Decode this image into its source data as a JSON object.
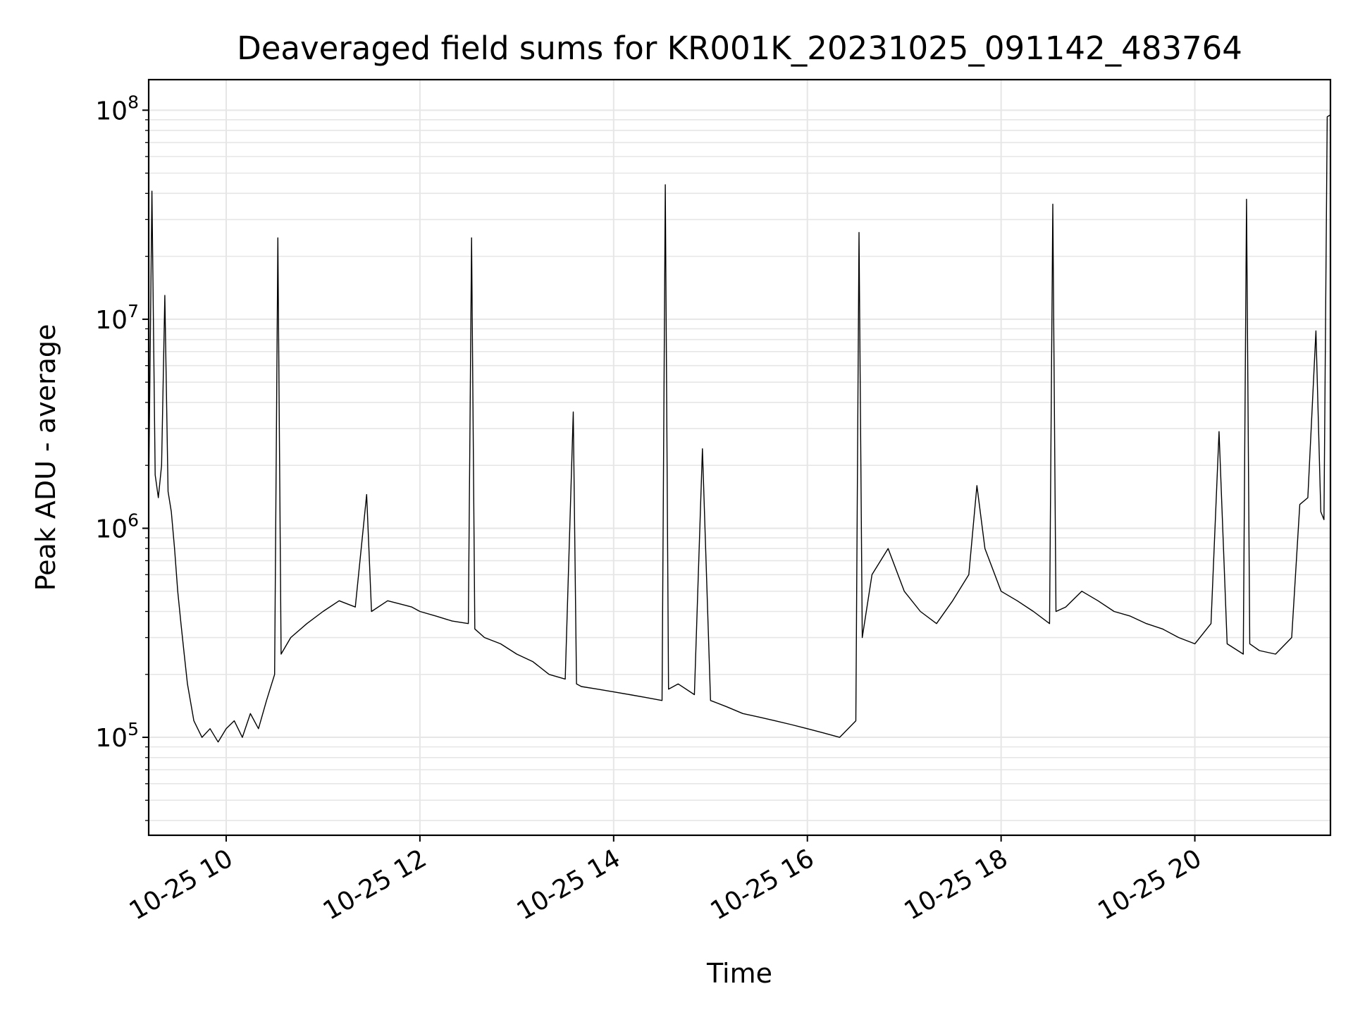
{
  "chart_data": {
    "type": "line",
    "title": "Deaveraged field sums for KR001K_20231025_091142_483764",
    "xlabel": "Time",
    "ylabel": "Peak ADU - average",
    "yscale": "log",
    "xlim": [
      "2023-10-25 09:12",
      "2023-10-25 21:24"
    ],
    "ylim": [
      34000,
      140000000
    ],
    "grid": true,
    "line_color": "#000000",
    "grid_color": "#e6e6e6",
    "x_ticks": [
      {
        "label": "10-25 10",
        "value": "2023-10-25 10:00"
      },
      {
        "label": "10-25 12",
        "value": "2023-10-25 12:00"
      },
      {
        "label": "10-25 14",
        "value": "2023-10-25 14:00"
      },
      {
        "label": "10-25 16",
        "value": "2023-10-25 16:00"
      },
      {
        "label": "10-25 18",
        "value": "2023-10-25 18:00"
      },
      {
        "label": "10-25 20",
        "value": "2023-10-25 20:00"
      }
    ],
    "y_ticks": [
      {
        "base": "10",
        "exp": "5",
        "value": 100000
      },
      {
        "base": "10",
        "exp": "6",
        "value": 1000000
      },
      {
        "base": "10",
        "exp": "7",
        "value": 10000000
      },
      {
        "base": "10",
        "exp": "8",
        "value": 100000000
      }
    ],
    "series": [
      {
        "x": [
          "2023-10-25 09:12",
          "2023-10-25 09:14",
          "2023-10-25 09:16",
          "2023-10-25 09:18",
          "2023-10-25 09:20",
          "2023-10-25 09:22",
          "2023-10-25 09:24",
          "2023-10-25 09:26",
          "2023-10-25 09:28",
          "2023-10-25 09:30",
          "2023-10-25 09:32",
          "2023-10-25 09:34",
          "2023-10-25 09:36",
          "2023-10-25 09:40",
          "2023-10-25 09:45",
          "2023-10-25 09:50",
          "2023-10-25 09:55",
          "2023-10-25 10:00",
          "2023-10-25 10:05",
          "2023-10-25 10:10",
          "2023-10-25 10:15",
          "2023-10-25 10:20",
          "2023-10-25 10:25",
          "2023-10-25 10:30",
          "2023-10-25 10:32",
          "2023-10-25 10:34",
          "2023-10-25 10:40",
          "2023-10-25 10:50",
          "2023-10-25 11:00",
          "2023-10-25 11:10",
          "2023-10-25 11:20",
          "2023-10-25 11:27",
          "2023-10-25 11:30",
          "2023-10-25 11:40",
          "2023-10-25 11:50",
          "2023-10-25 11:55",
          "2023-10-25 12:00",
          "2023-10-25 12:10",
          "2023-10-25 12:20",
          "2023-10-25 12:30",
          "2023-10-25 12:32",
          "2023-10-25 12:34",
          "2023-10-25 12:40",
          "2023-10-25 12:50",
          "2023-10-25 13:00",
          "2023-10-25 13:10",
          "2023-10-25 13:20",
          "2023-10-25 13:30",
          "2023-10-25 13:35",
          "2023-10-25 13:37",
          "2023-10-25 13:40",
          "2023-10-25 13:50",
          "2023-10-25 14:00",
          "2023-10-25 14:10",
          "2023-10-25 14:20",
          "2023-10-25 14:30",
          "2023-10-25 14:32",
          "2023-10-25 14:34",
          "2023-10-25 14:40",
          "2023-10-25 14:50",
          "2023-10-25 14:55",
          "2023-10-25 15:00",
          "2023-10-25 15:10",
          "2023-10-25 15:20",
          "2023-10-25 15:30",
          "2023-10-25 15:40",
          "2023-10-25 15:50",
          "2023-10-25 16:00",
          "2023-10-25 16:10",
          "2023-10-25 16:20",
          "2023-10-25 16:30",
          "2023-10-25 16:32",
          "2023-10-25 16:34",
          "2023-10-25 16:40",
          "2023-10-25 16:50",
          "2023-10-25 17:00",
          "2023-10-25 17:10",
          "2023-10-25 17:20",
          "2023-10-25 17:30",
          "2023-10-25 17:40",
          "2023-10-25 17:45",
          "2023-10-25 17:50",
          "2023-10-25 18:00",
          "2023-10-25 18:10",
          "2023-10-25 18:20",
          "2023-10-25 18:30",
          "2023-10-25 18:32",
          "2023-10-25 18:34",
          "2023-10-25 18:40",
          "2023-10-25 18:50",
          "2023-10-25 19:00",
          "2023-10-25 19:10",
          "2023-10-25 19:20",
          "2023-10-25 19:30",
          "2023-10-25 19:40",
          "2023-10-25 19:50",
          "2023-10-25 20:00",
          "2023-10-25 20:10",
          "2023-10-25 20:15",
          "2023-10-25 20:20",
          "2023-10-25 20:30",
          "2023-10-25 20:32",
          "2023-10-25 20:34",
          "2023-10-25 20:40",
          "2023-10-25 20:50",
          "2023-10-25 21:00",
          "2023-10-25 21:05",
          "2023-10-25 21:10",
          "2023-10-25 21:15",
          "2023-10-25 21:18",
          "2023-10-25 21:20",
          "2023-10-25 21:22",
          "2023-10-25 21:24"
        ],
        "y": [
          1500000,
          41000000,
          1800000,
          1400000,
          2000000,
          13000000,
          1500000,
          1200000,
          800000,
          500000,
          350000,
          250000,
          180000,
          120000,
          100000,
          110000,
          95000,
          110000,
          120000,
          100000,
          130000,
          110000,
          150000,
          200000,
          24500000,
          250000,
          300000,
          350000,
          400000,
          450000,
          420000,
          1450000,
          400000,
          450000,
          430000,
          420000,
          400000,
          380000,
          360000,
          350000,
          24500000,
          330000,
          300000,
          280000,
          250000,
          230000,
          200000,
          190000,
          3600000,
          180000,
          175000,
          170000,
          165000,
          160000,
          155000,
          150000,
          44000000,
          170000,
          180000,
          160000,
          2400000,
          150000,
          140000,
          130000,
          125000,
          120000,
          115000,
          110000,
          105000,
          100000,
          120000,
          26000000,
          300000,
          600000,
          800000,
          500000,
          400000,
          350000,
          450000,
          600000,
          1600000,
          800000,
          500000,
          450000,
          400000,
          350000,
          35500000,
          400000,
          420000,
          500000,
          450000,
          400000,
          380000,
          350000,
          330000,
          300000,
          280000,
          350000,
          2900000,
          280000,
          250000,
          37500000,
          280000,
          260000,
          250000,
          300000,
          1300000,
          1400000,
          8800000,
          1200000,
          1100000,
          93000000,
          95000000
        ]
      }
    ]
  }
}
